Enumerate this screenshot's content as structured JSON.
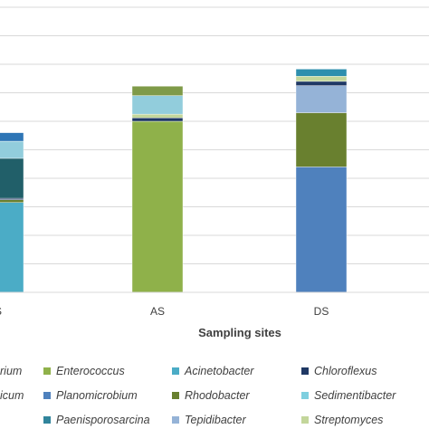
{
  "chart_data": {
    "type": "bar",
    "stacked": true,
    "title": "",
    "xlabel": "Sampling sites",
    "ylabel": "",
    "ylim": [
      0,
      100
    ],
    "grid": true,
    "legend_position": "bottom",
    "categories": [
      "S",
      "AS",
      "DS"
    ],
    "series": [
      {
        "name": "Enterococcus",
        "color": "#8fb14a",
        "values": [
          0,
          60,
          0
        ]
      },
      {
        "name": "Planomicrobium",
        "color": "#4f81bd",
        "values": [
          0,
          0,
          44
        ]
      },
      {
        "name": "Paenisporosarcina",
        "color": "#31859c",
        "values": [
          0,
          0,
          0
        ]
      },
      {
        "name": "Acinetobacter",
        "color": "#4bacc6",
        "values": [
          31.5,
          0,
          0
        ]
      },
      {
        "name": "Rhodobacter",
        "color": "#69802f",
        "values": [
          1,
          0,
          19
        ]
      },
      {
        "name": "Tepidibacter",
        "color": "#95b3d7",
        "values": [
          0,
          0,
          9.5
        ]
      },
      {
        "name": "Chloroflexus",
        "color": "#1f3864",
        "values": [
          0.5,
          1.2,
          1.5
        ]
      },
      {
        "name": "Sedimentibacter",
        "color": "#7ecfdf",
        "values": [
          0,
          0,
          0
        ]
      },
      {
        "name": "Streptomyces",
        "color": "#c3d69b",
        "values": [
          0,
          1.3,
          1.8
        ]
      },
      {
        "name": "",
        "color": "#215f69",
        "values": [
          14,
          0,
          0
        ]
      },
      {
        "name": "",
        "color": "#92cddc",
        "values": [
          6,
          6.5,
          0
        ]
      },
      {
        "name": "",
        "color": "#7f9a48",
        "values": [
          0,
          3.3,
          0
        ]
      },
      {
        "name": "",
        "color": "#2e8fae",
        "values": [
          0,
          0,
          2.5
        ]
      },
      {
        "name": "",
        "color": "#2e75b6",
        "values": [
          3,
          0,
          0
        ]
      }
    ],
    "partial_legend_labels": [
      "rium",
      "icum"
    ]
  }
}
